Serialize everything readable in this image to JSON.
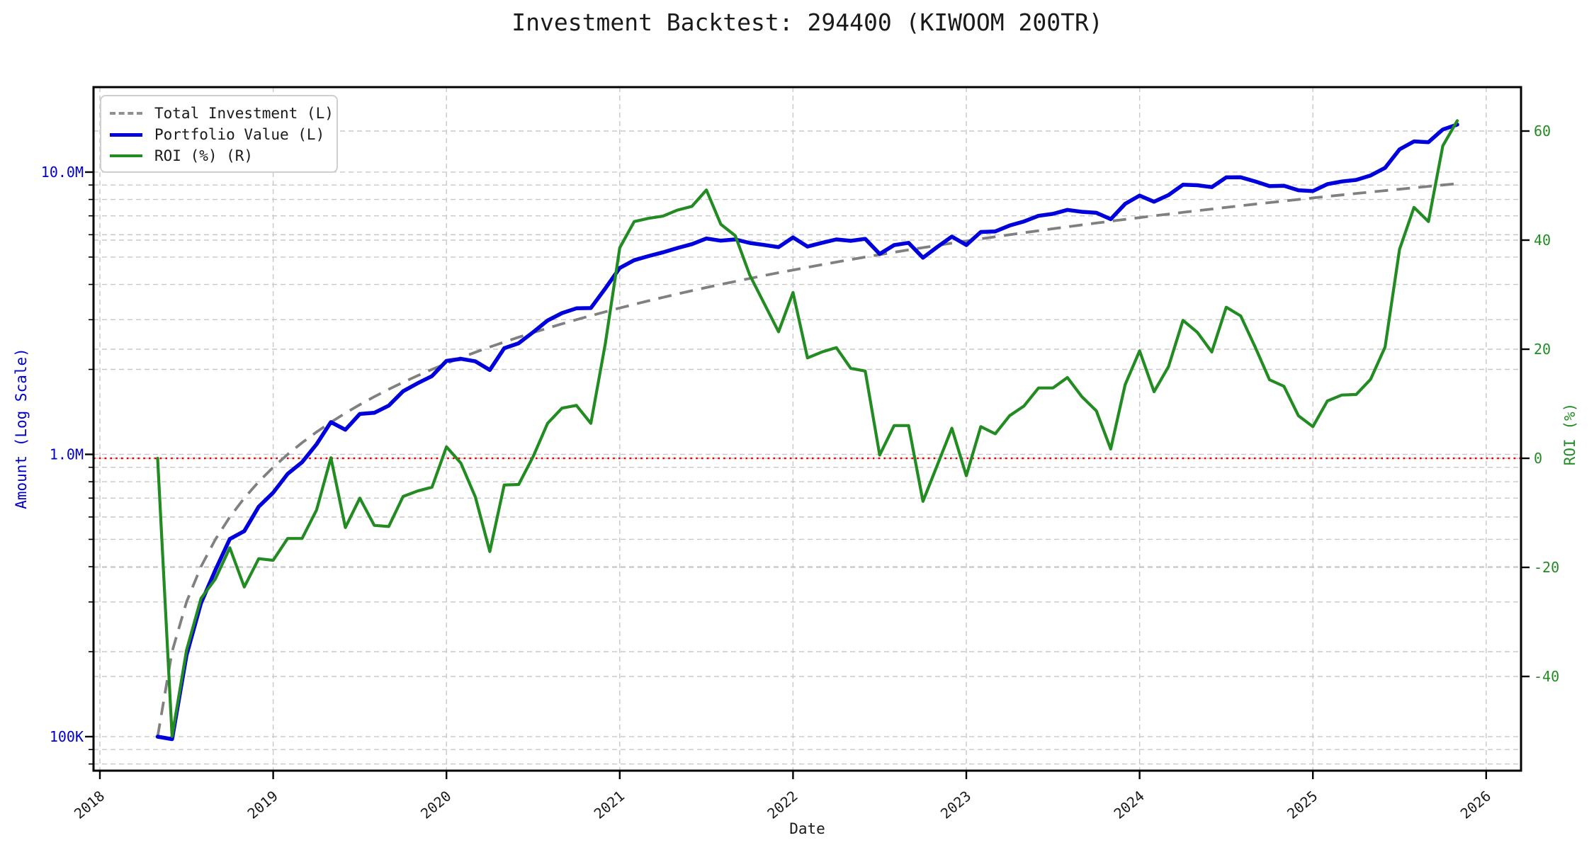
{
  "title": "Investment Backtest: 294400 (KIWOOM 200TR)",
  "axes": {
    "x": {
      "label": "Date",
      "ticks": [
        "2018",
        "2019",
        "2020",
        "2021",
        "2022",
        "2023",
        "2024",
        "2025",
        "2026"
      ]
    },
    "y_left": {
      "label": "Amount (Log Scale)",
      "color": "#0000cc",
      "scale": "log",
      "ticks": [
        {
          "value": 100000,
          "label": "100K"
        },
        {
          "value": 1000000,
          "label": "1.0M"
        },
        {
          "value": 10000000,
          "label": "10.0M"
        }
      ],
      "gridline_values": [
        80000,
        90000,
        100000,
        200000,
        300000,
        400000,
        500000,
        600000,
        700000,
        800000,
        900000,
        1000000,
        2000000,
        3000000,
        4000000,
        5000000,
        6000000,
        7000000,
        8000000,
        9000000,
        10000000
      ]
    },
    "y_right": {
      "label": "ROI (%)",
      "color": "#228B22",
      "scale": "linear",
      "ticks": [
        {
          "value": -40,
          "label": "-40"
        },
        {
          "value": -20,
          "label": "-20"
        },
        {
          "value": 0,
          "label": "0"
        },
        {
          "value": 20,
          "label": "20"
        },
        {
          "value": 40,
          "label": "40"
        },
        {
          "value": 60,
          "label": "60"
        }
      ]
    }
  },
  "legend": {
    "items": [
      {
        "label": "Total Investment (L)",
        "color": "#909090",
        "style": "dashed"
      },
      {
        "label": "Portfolio Value (L)",
        "color": "#0000dd",
        "style": "solid"
      },
      {
        "label": "ROI (%) (R)",
        "color": "#228B22",
        "style": "solid"
      }
    ]
  },
  "reference_lines": [
    {
      "name": "roi-zero",
      "axis": "right",
      "value": 0,
      "color": "#e60000",
      "style": "dotted"
    }
  ],
  "colors": {
    "grid": "#c8c8c8",
    "spine": "#000000",
    "total_investment": "#808080",
    "portfolio_value": "#0000dd",
    "roi": "#228B22",
    "zero_line": "#e60000"
  },
  "chart_data": {
    "type": "line",
    "frequency": "monthly (month-end)",
    "x": [
      "2018-04",
      "2018-05",
      "2018-06",
      "2018-07",
      "2018-08",
      "2018-09",
      "2018-10",
      "2018-11",
      "2018-12",
      "2019-01",
      "2019-02",
      "2019-03",
      "2019-04",
      "2019-05",
      "2019-06",
      "2019-07",
      "2019-08",
      "2019-09",
      "2019-10",
      "2019-11",
      "2019-12",
      "2020-01",
      "2020-02",
      "2020-03",
      "2020-04",
      "2020-05",
      "2020-06",
      "2020-07",
      "2020-08",
      "2020-09",
      "2020-10",
      "2020-11",
      "2020-12",
      "2021-01",
      "2021-02",
      "2021-03",
      "2021-04",
      "2021-05",
      "2021-06",
      "2021-07",
      "2021-08",
      "2021-09",
      "2021-10",
      "2021-11",
      "2021-12",
      "2022-01",
      "2022-02",
      "2022-03",
      "2022-04",
      "2022-05",
      "2022-06",
      "2022-07",
      "2022-08",
      "2022-09",
      "2022-10",
      "2022-11",
      "2022-12",
      "2023-01",
      "2023-02",
      "2023-03",
      "2023-04",
      "2023-05",
      "2023-06",
      "2023-07",
      "2023-08",
      "2023-09",
      "2023-10",
      "2023-11",
      "2023-12",
      "2024-01",
      "2024-02",
      "2024-03",
      "2024-04",
      "2024-05",
      "2024-06",
      "2024-07",
      "2024-08",
      "2024-09",
      "2024-10",
      "2024-11",
      "2024-12",
      "2025-01",
      "2025-02",
      "2025-03",
      "2025-04",
      "2025-05",
      "2025-06",
      "2025-07",
      "2025-08",
      "2025-09",
      "2025-10"
    ],
    "series": [
      {
        "name": "Total Investment (L)",
        "axis": "left",
        "color": "#808080",
        "style": "dashed",
        "values": [
          100000,
          200000,
          300000,
          400000,
          500000,
          600000,
          700000,
          800000,
          900000,
          1000000,
          1100000,
          1200000,
          1300000,
          1400000,
          1500000,
          1600000,
          1700000,
          1800000,
          1900000,
          2000000,
          2100000,
          2200000,
          2300000,
          2400000,
          2500000,
          2600000,
          2700000,
          2800000,
          2900000,
          3000000,
          3100000,
          3200000,
          3300000,
          3400000,
          3500000,
          3600000,
          3700000,
          3800000,
          3900000,
          4000000,
          4100000,
          4200000,
          4300000,
          4400000,
          4500000,
          4600000,
          4700000,
          4800000,
          4900000,
          5000000,
          5100000,
          5200000,
          5300000,
          5400000,
          5500000,
          5600000,
          5700000,
          5800000,
          5900000,
          6000000,
          6100000,
          6200000,
          6300000,
          6400000,
          6500000,
          6600000,
          6700000,
          6800000,
          6900000,
          7000000,
          7100000,
          7200000,
          7300000,
          7400000,
          7500000,
          7600000,
          7700000,
          7800000,
          7900000,
          8000000,
          8100000,
          8200000,
          8300000,
          8400000,
          8500000,
          8600000,
          8700000,
          8800000,
          8900000,
          9000000,
          9100000
        ]
      },
      {
        "name": "Portfolio Value (L)",
        "axis": "left",
        "color": "#0000dd",
        "style": "solid",
        "values": [
          100000,
          98000,
          194400,
          297200,
          389500,
          501600,
          534800,
          652800,
          731700,
          853000,
          938300,
          1086000,
          1301300,
          1222200,
          1390500,
          1403200,
          1487500,
          1674000,
          1786000,
          1894000,
          2144100,
          2180200,
          2136700,
          1989600,
          2377500,
          2475200,
          2708100,
          2979200,
          3166800,
          3291000,
          3298400,
          3872000,
          4573800,
          4875600,
          5040000,
          5198400,
          5383500,
          5555600,
          5818800,
          5716000,
          5772800,
          5611200,
          5521200,
          5420800,
          5868000,
          5446400,
          5616500,
          5774400,
          5708500,
          5800000,
          5130600,
          5512000,
          5618000,
          4973400,
          5434000,
          5908000,
          5517600,
          6136400,
          6165500,
          6468000,
          6685600,
          6999800,
          7112700,
          7347200,
          7234500,
          7174200,
          6813900,
          7718000,
          8259300,
          7854000,
          8292800,
          9021600,
          8986300,
          8843000,
          9577500,
          9583600,
          9271100,
          8923200,
          8942800,
          8624000,
          8569800,
          9061000,
          9262800,
          9382800,
          9732500,
          10354400,
          12032100,
          12848000,
          12762600,
          14157000,
          14732900
        ]
      },
      {
        "name": "ROI (%) (R)",
        "axis": "right",
        "color": "#228B22",
        "style": "solid",
        "values": [
          0.0,
          -51.0,
          -35.2,
          -25.7,
          -22.1,
          -16.4,
          -23.6,
          -18.4,
          -18.7,
          -14.7,
          -14.7,
          -9.5,
          0.1,
          -12.7,
          -7.3,
          -12.3,
          -12.5,
          -7.0,
          -6.0,
          -5.3,
          2.1,
          -0.9,
          -7.1,
          -17.1,
          -4.9,
          -4.8,
          0.3,
          6.4,
          9.2,
          9.7,
          6.4,
          21.0,
          38.6,
          43.4,
          44.0,
          44.4,
          45.5,
          46.2,
          49.2,
          42.9,
          40.8,
          33.6,
          28.4,
          23.2,
          30.4,
          18.4,
          19.5,
          20.3,
          16.5,
          16.0,
          0.6,
          6.0,
          6.0,
          -7.9,
          -1.2,
          5.5,
          -3.2,
          5.8,
          4.5,
          7.8,
          9.6,
          12.9,
          12.9,
          14.8,
          11.3,
          8.7,
          1.7,
          13.5,
          19.7,
          12.2,
          16.8,
          25.3,
          23.1,
          19.5,
          27.7,
          26.1,
          20.4,
          14.4,
          13.2,
          7.8,
          5.8,
          10.5,
          11.6,
          11.7,
          14.5,
          20.4,
          38.3,
          46.0,
          43.4,
          57.3,
          61.9
        ]
      }
    ],
    "xlabel": "Date",
    "ylabel_left": "Amount (Log Scale)",
    "ylabel_right": "ROI (%)",
    "y_left_range": [
      75000,
      20000000
    ],
    "y_right_range": [
      -57.5,
      68.1
    ],
    "x_range_years": [
      2017.96,
      2026.2
    ],
    "grid": true,
    "legend_position": "upper left"
  }
}
